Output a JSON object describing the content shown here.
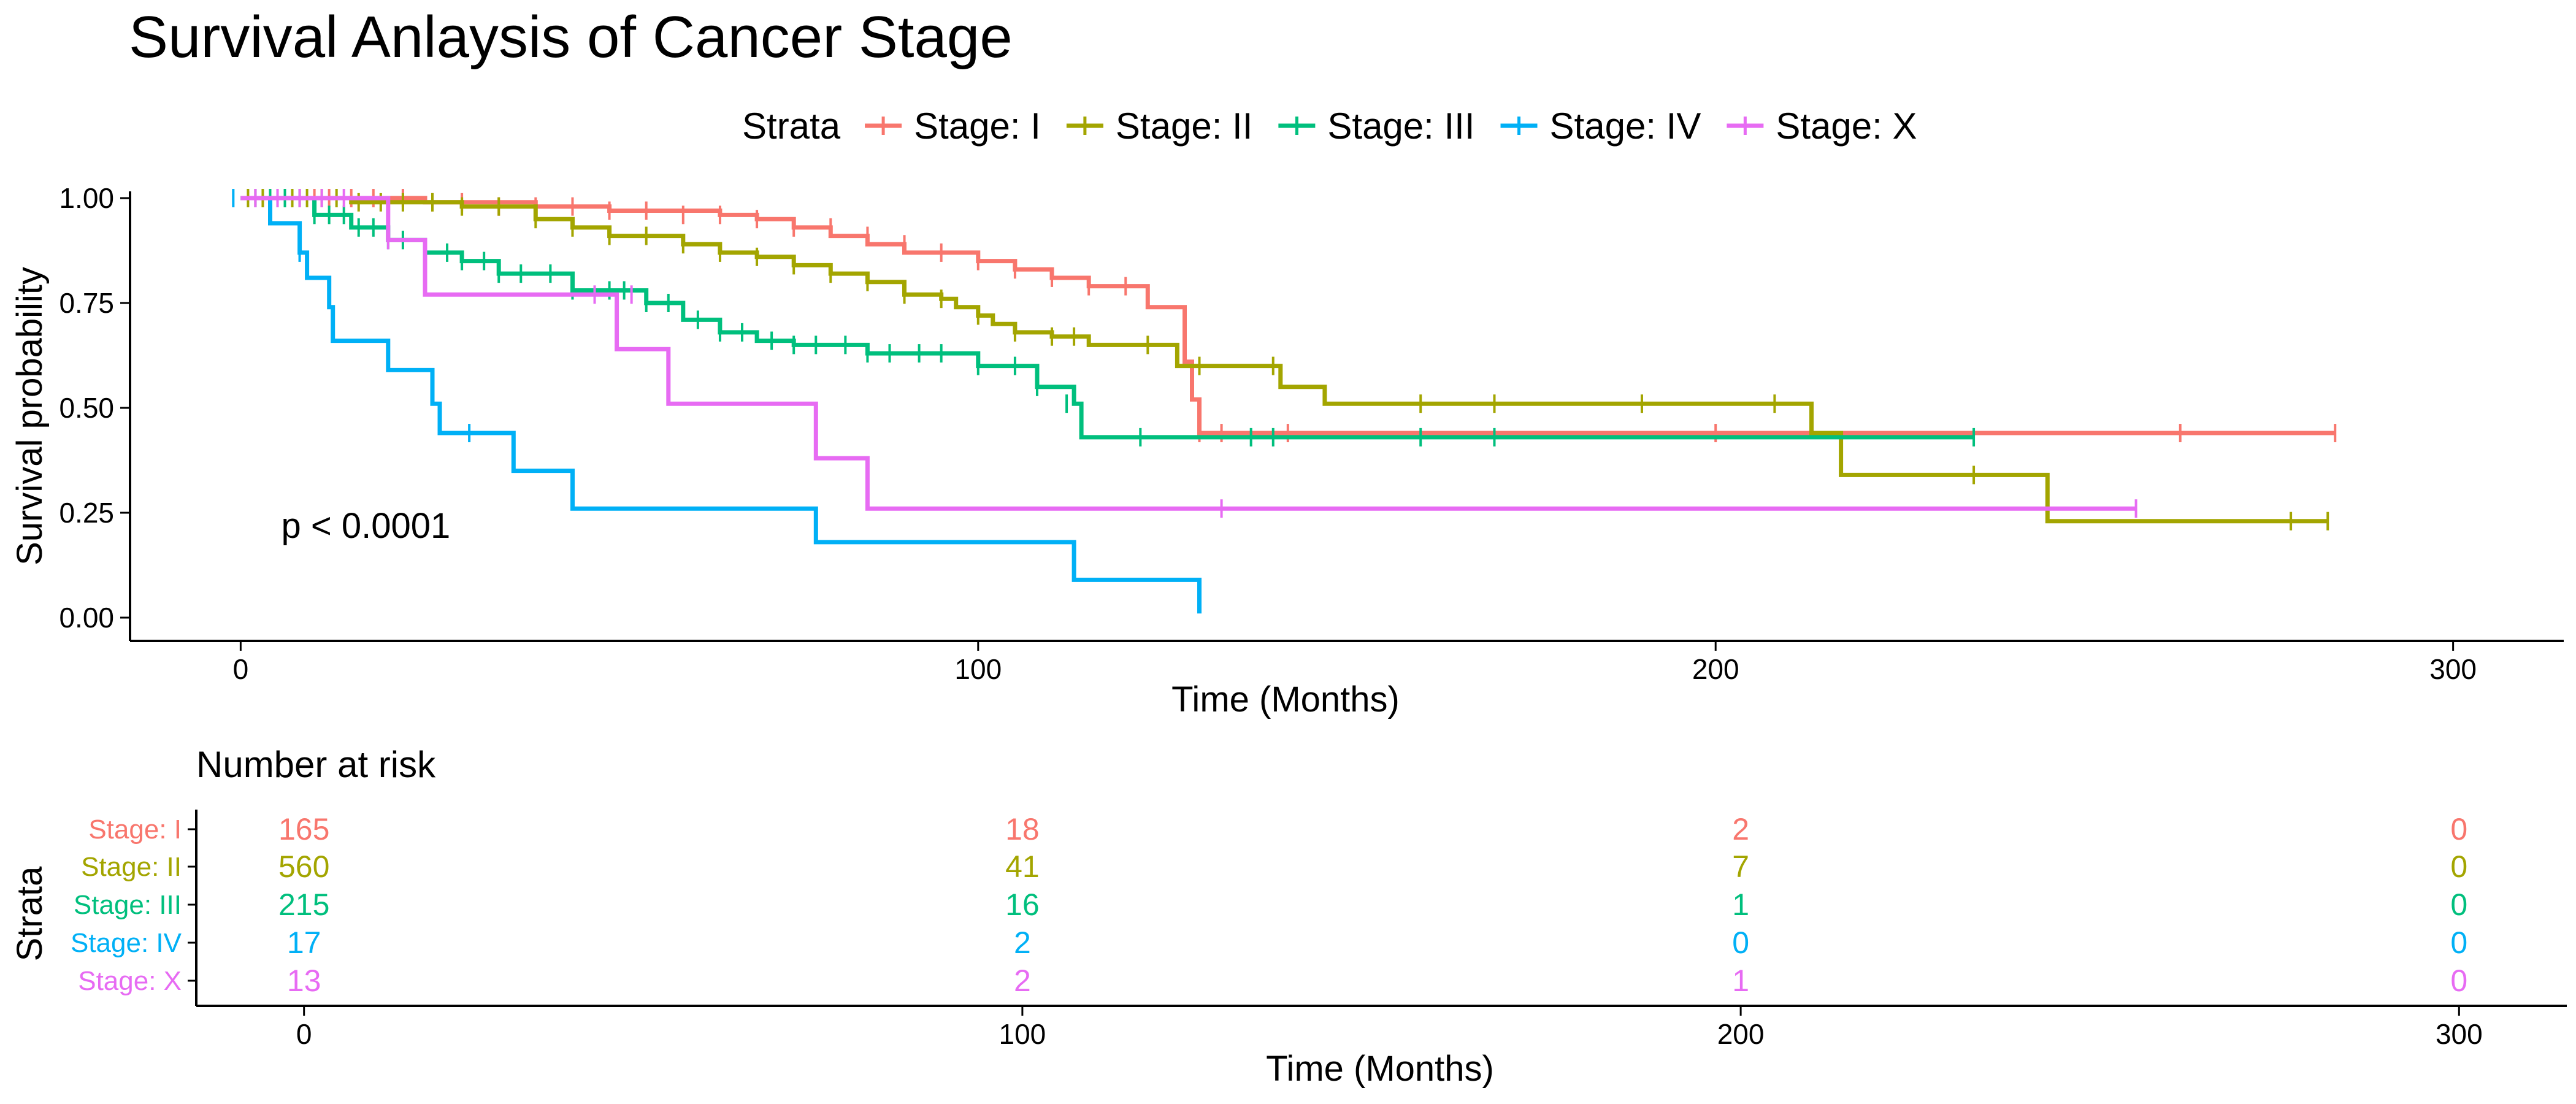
{
  "title": "Survival Anlaysis of Cancer Stage",
  "legend": {
    "title": "Strata"
  },
  "pvalue": "p < 0.0001",
  "chart_data": [
    {
      "type": "line",
      "subtype": "kaplan-meier",
      "title": "Survival Anlaysis of Cancer Stage",
      "xlabel": "Time (Months)",
      "ylabel": "Survival probability",
      "xlim": [
        -15,
        315
      ],
      "ylim": [
        0,
        1
      ],
      "x_ticks": [
        0,
        100,
        200,
        300
      ],
      "y_ticks": [
        0,
        0.25,
        0.5,
        0.75,
        1
      ],
      "y_tick_labels": [
        "0.00",
        "0.25",
        "0.50",
        "0.75",
        "1.00"
      ],
      "grid": false,
      "legend_position": "top",
      "annotation": "p < 0.0001",
      "series": [
        {
          "name": "Stage: I",
          "color": "#F8766D",
          "steps": [
            [
              0,
              1
            ],
            [
              25,
              0.99
            ],
            [
              40,
              0.98
            ],
            [
              50,
              0.97
            ],
            [
              65,
              0.96
            ],
            [
              70,
              0.95
            ],
            [
              75,
              0.93
            ],
            [
              80,
              0.91
            ],
            [
              85,
              0.89
            ],
            [
              90,
              0.87
            ],
            [
              100,
              0.85
            ],
            [
              105,
              0.83
            ],
            [
              110,
              0.81
            ],
            [
              115,
              0.79
            ],
            [
              123,
              0.74
            ],
            [
              128,
              0.61
            ],
            [
              129,
              0.52
            ],
            [
              130,
              0.44
            ]
          ],
          "end": 284,
          "censor_times": [
            2,
            4,
            6,
            8,
            10,
            12,
            15,
            18,
            22,
            26,
            30,
            35,
            40,
            45,
            50,
            55,
            60,
            65,
            70,
            75,
            80,
            85,
            90,
            95,
            100,
            105,
            110,
            115,
            120,
            130,
            133,
            142,
            200,
            263,
            284
          ],
          "censor_values": [
            1,
            1,
            1,
            1,
            1,
            1,
            1,
            1,
            1,
            0.99,
            0.99,
            0.98,
            0.98,
            0.98,
            0.97,
            0.97,
            0.96,
            0.96,
            0.95,
            0.93,
            0.93,
            0.91,
            0.89,
            0.87,
            0.85,
            0.83,
            0.81,
            0.79,
            0.79,
            0.44,
            0.44,
            0.44,
            0.44,
            0.44,
            0.44
          ]
        },
        {
          "name": "Stage: II",
          "color": "#A3A500",
          "steps": [
            [
              0,
              1
            ],
            [
              15,
              0.99
            ],
            [
              30,
              0.98
            ],
            [
              40,
              0.95
            ],
            [
              45,
              0.93
            ],
            [
              50,
              0.91
            ],
            [
              60,
              0.89
            ],
            [
              65,
              0.87
            ],
            [
              70,
              0.86
            ],
            [
              75,
              0.84
            ],
            [
              80,
              0.82
            ],
            [
              85,
              0.8
            ],
            [
              90,
              0.77
            ],
            [
              95,
              0.76
            ],
            [
              97,
              0.74
            ],
            [
              100,
              0.72
            ],
            [
              102,
              0.7
            ],
            [
              105,
              0.68
            ],
            [
              110,
              0.67
            ],
            [
              115,
              0.65
            ],
            [
              127,
              0.6
            ],
            [
              141,
              0.55
            ],
            [
              147,
              0.51
            ],
            [
              213,
              0.44
            ],
            [
              217,
              0.34
            ],
            [
              245,
              0.23
            ]
          ],
          "end": 283,
          "censor_times": [
            1,
            3,
            5,
            7,
            9,
            11,
            13,
            16,
            19,
            22,
            26,
            30,
            35,
            40,
            45,
            50,
            55,
            60,
            65,
            70,
            75,
            80,
            85,
            90,
            95,
            100,
            105,
            110,
            113,
            123,
            130,
            140,
            160,
            170,
            190,
            208,
            235,
            278,
            283
          ],
          "censor_values": [
            1,
            1,
            1,
            1,
            1,
            1,
            1,
            0.99,
            0.99,
            0.99,
            0.99,
            0.98,
            0.98,
            0.95,
            0.93,
            0.91,
            0.91,
            0.89,
            0.87,
            0.86,
            0.84,
            0.82,
            0.8,
            0.77,
            0.76,
            0.72,
            0.68,
            0.67,
            0.67,
            0.65,
            0.6,
            0.6,
            0.51,
            0.51,
            0.51,
            0.51,
            0.34,
            0.23,
            0.23
          ]
        },
        {
          "name": "Stage: III",
          "color": "#00BF7D",
          "steps": [
            [
              0,
              1
            ],
            [
              10,
              0.96
            ],
            [
              15,
              0.93
            ],
            [
              20,
              0.9
            ],
            [
              25,
              0.87
            ],
            [
              30,
              0.85
            ],
            [
              35,
              0.82
            ],
            [
              45,
              0.78
            ],
            [
              55,
              0.75
            ],
            [
              60,
              0.71
            ],
            [
              65,
              0.68
            ],
            [
              70,
              0.66
            ],
            [
              75,
              0.65
            ],
            [
              85,
              0.63
            ],
            [
              100,
              0.6
            ],
            [
              108,
              0.55
            ],
            [
              113,
              0.51
            ],
            [
              114,
              0.43
            ]
          ],
          "end": 235,
          "censor_times": [
            2,
            4,
            6,
            8,
            10,
            12,
            14,
            16,
            18,
            20,
            22,
            25,
            28,
            30,
            33,
            35,
            38,
            42,
            45,
            50,
            52,
            55,
            58,
            62,
            65,
            68,
            72,
            75,
            78,
            82,
            85,
            88,
            92,
            95,
            100,
            105,
            108,
            112,
            122,
            137,
            140,
            160,
            170,
            235
          ],
          "censor_values": [
            1,
            1,
            1,
            1,
            0.96,
            0.96,
            0.96,
            0.93,
            0.93,
            0.9,
            0.9,
            0.87,
            0.87,
            0.85,
            0.85,
            0.82,
            0.82,
            0.82,
            0.78,
            0.78,
            0.78,
            0.75,
            0.75,
            0.71,
            0.68,
            0.68,
            0.66,
            0.65,
            0.65,
            0.65,
            0.63,
            0.63,
            0.63,
            0.63,
            0.6,
            0.6,
            0.55,
            0.51,
            0.43,
            0.43,
            0.43,
            0.43,
            0.43,
            0.43
          ]
        },
        {
          "name": "Stage: IV",
          "color": "#00B0F6",
          "steps": [
            [
              0,
              1
            ],
            [
              4,
              0.94
            ],
            [
              8,
              0.87
            ],
            [
              9,
              0.81
            ],
            [
              12,
              0.74
            ],
            [
              12.5,
              0.66
            ],
            [
              20,
              0.59
            ],
            [
              26,
              0.51
            ],
            [
              27,
              0.44
            ],
            [
              37,
              0.35
            ],
            [
              45,
              0.26
            ],
            [
              78,
              0.18
            ],
            [
              113,
              0.09
            ],
            [
              130,
              0.01
            ]
          ],
          "end": 130,
          "censor_times": [
            -1,
            8,
            31
          ],
          "censor_values": [
            1,
            0.87,
            0.44
          ]
        },
        {
          "name": "Stage: X",
          "color": "#E76BF3",
          "steps": [
            [
              0,
              1
            ],
            [
              20,
              0.9
            ],
            [
              25,
              0.77
            ],
            [
              51,
              0.64
            ],
            [
              58,
              0.51
            ],
            [
              78,
              0.38
            ],
            [
              85,
              0.26
            ]
          ],
          "end": 257,
          "censor_times": [
            2,
            5,
            8,
            11,
            14,
            20,
            48,
            53,
            133,
            257
          ],
          "censor_values": [
            1,
            1,
            1,
            1,
            1,
            0.9,
            0.77,
            0.77,
            0.26,
            0.26
          ]
        }
      ]
    },
    {
      "type": "table",
      "title": "Number at risk",
      "xlabel": "Time (Months)",
      "ylabel": "Strata",
      "x_ticks": [
        0,
        100,
        200,
        300
      ],
      "rows": [
        {
          "label": "Stage: I",
          "color": "#F8766D",
          "values": [
            165,
            18,
            2,
            0
          ]
        },
        {
          "label": "Stage: II",
          "color": "#A3A500",
          "values": [
            560,
            41,
            7,
            0
          ]
        },
        {
          "label": "Stage: III",
          "color": "#00BF7D",
          "values": [
            215,
            16,
            1,
            0
          ]
        },
        {
          "label": "Stage: IV",
          "color": "#00B0F6",
          "values": [
            17,
            2,
            0,
            0
          ]
        },
        {
          "label": "Stage: X",
          "color": "#E76BF3",
          "values": [
            13,
            2,
            1,
            0
          ]
        }
      ]
    }
  ]
}
